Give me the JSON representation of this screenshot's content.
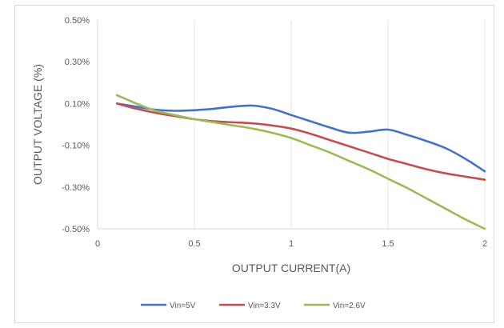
{
  "chart_data": {
    "type": "line",
    "title": "",
    "xlabel": "OUTPUT CURRENT(A)",
    "ylabel": "OUTPUT VOLTAGE (%)",
    "xlim": [
      0,
      2
    ],
    "ylim": [
      -0.5,
      0.5
    ],
    "x_ticks": [
      0,
      0.5,
      1,
      1.5,
      2
    ],
    "x_tick_labels": [
      "0",
      "0.5",
      "1",
      "1.5",
      "2"
    ],
    "y_ticks": [
      0.5,
      0.3,
      0.1,
      -0.1,
      -0.3,
      -0.5
    ],
    "y_tick_labels": [
      "0.50%",
      "0.30%",
      "0.10%",
      "-0.10%",
      "-0.30%",
      "-0.50%"
    ],
    "grid": "vertical",
    "legend_position": "bottom",
    "series": [
      {
        "name": "Vin=5V",
        "color": "#4472c4",
        "x": [
          0.1,
          0.2,
          0.3,
          0.4,
          0.5,
          0.6,
          0.7,
          0.8,
          0.9,
          1.0,
          1.1,
          1.2,
          1.3,
          1.4,
          1.5,
          1.6,
          1.7,
          1.8,
          1.9,
          2.0
        ],
        "y": [
          0.1,
          0.085,
          0.07,
          0.065,
          0.068,
          0.075,
          0.085,
          0.09,
          0.075,
          0.045,
          0.015,
          -0.015,
          -0.04,
          -0.035,
          -0.025,
          -0.05,
          -0.08,
          -0.115,
          -0.165,
          -0.225
        ]
      },
      {
        "name": "Vin=3.3V",
        "color": "#c0504d",
        "x": [
          0.1,
          0.2,
          0.3,
          0.4,
          0.5,
          0.6,
          0.7,
          0.8,
          0.9,
          1.0,
          1.1,
          1.2,
          1.3,
          1.4,
          1.5,
          1.6,
          1.7,
          1.8,
          1.9,
          2.0
        ],
        "y": [
          0.1,
          0.075,
          0.055,
          0.04,
          0.025,
          0.015,
          0.01,
          0.005,
          -0.005,
          -0.02,
          -0.045,
          -0.075,
          -0.105,
          -0.135,
          -0.165,
          -0.19,
          -0.215,
          -0.235,
          -0.25,
          -0.265
        ]
      },
      {
        "name": "Vin=2.6V",
        "color": "#9bbb59",
        "x": [
          0.1,
          0.2,
          0.3,
          0.4,
          0.5,
          0.6,
          0.7,
          0.8,
          0.9,
          1.0,
          1.1,
          1.2,
          1.3,
          1.4,
          1.5,
          1.6,
          1.7,
          1.8,
          1.9,
          2.0
        ],
        "y": [
          0.14,
          0.1,
          0.065,
          0.045,
          0.025,
          0.01,
          -0.005,
          -0.02,
          -0.04,
          -0.065,
          -0.1,
          -0.135,
          -0.175,
          -0.215,
          -0.26,
          -0.305,
          -0.355,
          -0.405,
          -0.455,
          -0.5
        ]
      }
    ]
  }
}
